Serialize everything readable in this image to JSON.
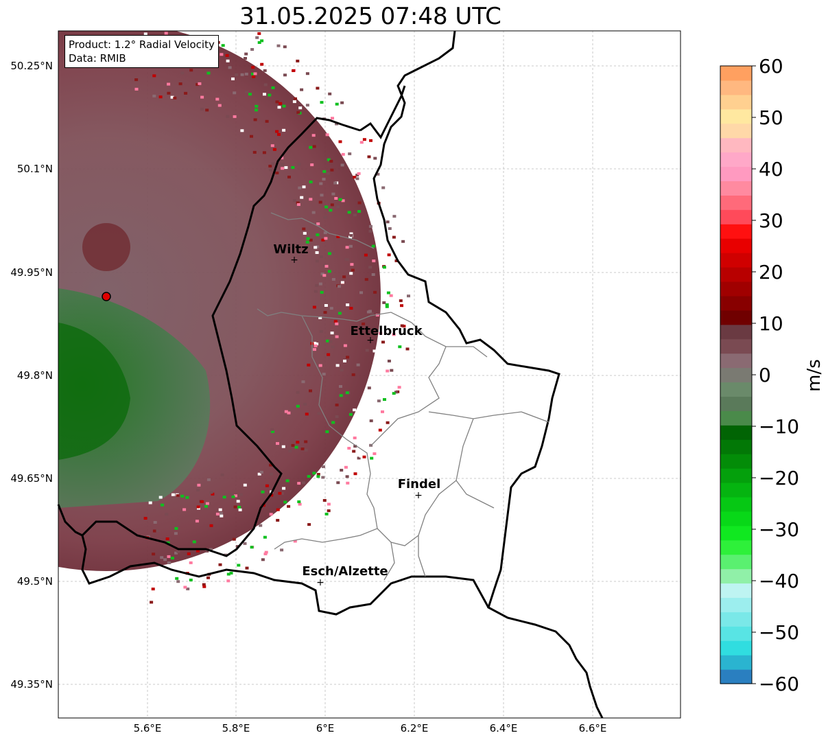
{
  "title": "31.05.2025 07:48 UTC",
  "info": {
    "product": "Product: 1.2° Radial Velocity",
    "data": "Data: RMIB"
  },
  "axes": {
    "lon_ticks": [
      "5.6°E",
      "5.8°E",
      "6°E",
      "6.2°E",
      "6.4°E",
      "6.6°E"
    ],
    "lat_ticks": [
      "50.25°N",
      "50.1°N",
      "49.95°N",
      "49.8°N",
      "49.65°N",
      "49.5°N",
      "49.35°N"
    ]
  },
  "cities": [
    {
      "name": "Wiltz"
    },
    {
      "name": "Ettelbruck"
    },
    {
      "name": "Findel"
    },
    {
      "name": "Esch/Alzette"
    }
  ],
  "colorbar": {
    "label": "m/s",
    "ticks": [
      "60",
      "50",
      "40",
      "30",
      "20",
      "10",
      "0",
      "−10",
      "−20",
      "−30",
      "−40",
      "−50",
      "−60"
    ],
    "range": [
      -60,
      60
    ],
    "colors": [
      "#2a7fc0",
      "#2ab4d0",
      "#30dde0",
      "#58e4e4",
      "#7ae8e8",
      "#9ceeee",
      "#bef4f2",
      "#90f0a8",
      "#5af070",
      "#2ef03a",
      "#10e820",
      "#08d818",
      "#06c814",
      "#05b410",
      "#04a00c",
      "#038c08",
      "#027806",
      "#016404",
      "#4a8a4a",
      "#5a7a5a",
      "#6a8a6a",
      "#7a7a72",
      "#8a6a72",
      "#7a4a52",
      "#6a3a42",
      "#700000",
      "#880000",
      "#a00000",
      "#b80000",
      "#d00000",
      "#e80000",
      "#ff1010",
      "#ff4a5a",
      "#ff6a7a",
      "#ff8aa0",
      "#ff9ac0",
      "#ffa8c8",
      "#ffb8c0",
      "#ffd8a8",
      "#ffe8a0",
      "#ffd090",
      "#ffb880",
      "#ffa060"
    ]
  }
}
